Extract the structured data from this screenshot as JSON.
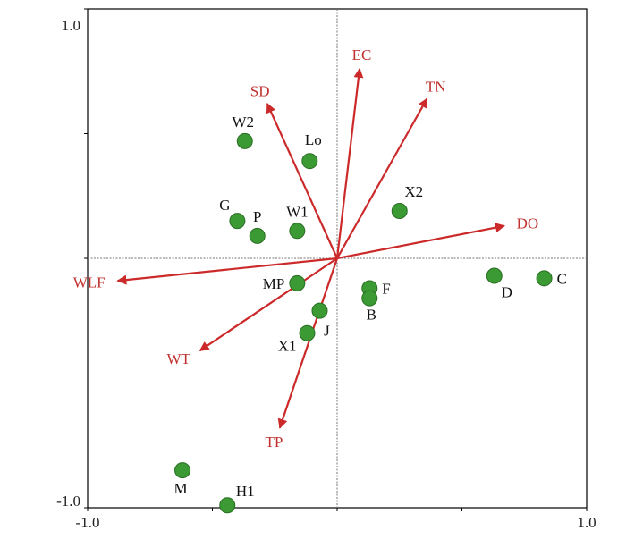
{
  "chart_data": {
    "type": "scatter",
    "subtype": "ordination-biplot",
    "xlim": [
      -1.0,
      1.0
    ],
    "ylim": [
      -1.0,
      1.0
    ],
    "x_tick_labels": [
      {
        "value": -1.0,
        "label": "-1.0"
      },
      {
        "value": 1.0,
        "label": "1.0"
      }
    ],
    "y_tick_labels": [
      {
        "value": 1.0,
        "label": "1.0"
      },
      {
        "value": -1.0,
        "label": "-1.0"
      }
    ],
    "grid": false,
    "zero_lines": true,
    "colors": {
      "points": "#3b9a33",
      "point_edge": "#2b6e25",
      "vectors": "#cc2a2a",
      "vector_labels": "#c0302e",
      "zero_lines": "#777777",
      "frame": "#000000"
    },
    "environmental_vectors": [
      {
        "name": "EC",
        "x": 0.09,
        "y": 0.76
      },
      {
        "name": "TN",
        "x": 0.36,
        "y": 0.64
      },
      {
        "name": "SD",
        "x": -0.28,
        "y": 0.62
      },
      {
        "name": "DO",
        "x": 0.67,
        "y": 0.13
      },
      {
        "name": "WLF",
        "x": -0.88,
        "y": -0.09
      },
      {
        "name": "WT",
        "x": -0.55,
        "y": -0.37
      },
      {
        "name": "TP",
        "x": -0.23,
        "y": -0.68
      }
    ],
    "points": [
      {
        "label": "W2",
        "x": -0.37,
        "y": 0.47
      },
      {
        "label": "Lo",
        "x": -0.11,
        "y": 0.39
      },
      {
        "label": "G",
        "x": -0.4,
        "y": 0.15
      },
      {
        "label": "P",
        "x": -0.32,
        "y": 0.09
      },
      {
        "label": "W1",
        "x": -0.16,
        "y": 0.11
      },
      {
        "label": "X2",
        "x": 0.25,
        "y": 0.19
      },
      {
        "label": "MP",
        "x": -0.16,
        "y": -0.1
      },
      {
        "label": "F",
        "x": 0.13,
        "y": -0.12
      },
      {
        "label": "B",
        "x": 0.13,
        "y": -0.16
      },
      {
        "label": "D",
        "x": 0.63,
        "y": -0.07
      },
      {
        "label": "C",
        "x": 0.83,
        "y": -0.08
      },
      {
        "label": "J",
        "x": -0.07,
        "y": -0.21
      },
      {
        "label": "X1",
        "x": -0.12,
        "y": -0.3
      },
      {
        "label": "M",
        "x": -0.62,
        "y": -0.85
      },
      {
        "label": "H1",
        "x": -0.44,
        "y": -0.99
      }
    ]
  }
}
